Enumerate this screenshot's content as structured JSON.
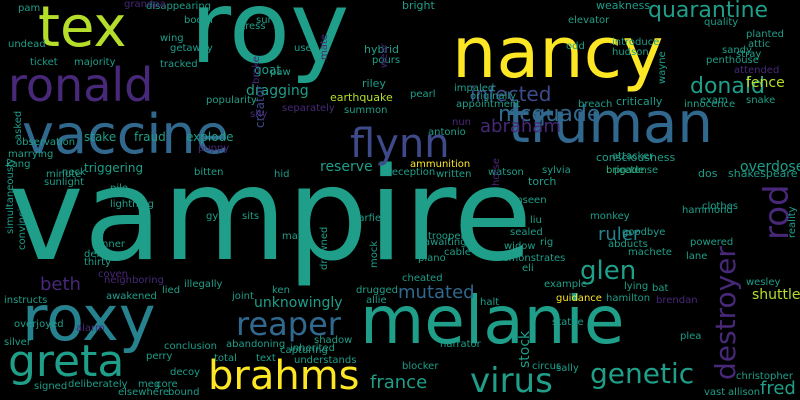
{
  "palette": {
    "yellow": "#fde725",
    "lime": "#b5de2b",
    "green": "#6ece58",
    "green2": "#35b779",
    "teal": "#1f9e89",
    "teal2": "#26828e",
    "blue": "#31688e",
    "blue2": "#3e4a89",
    "indigo": "#482878",
    "purple": "#440154"
  },
  "words": [
    {
      "text": "vampire",
      "color": "teal"
    },
    {
      "text": "roy",
      "color": "teal"
    },
    {
      "text": "nancy",
      "color": "yellow"
    },
    {
      "text": "tex",
      "color": "lime"
    },
    {
      "text": "ronald",
      "color": "indigo"
    },
    {
      "text": "vaccine",
      "color": "blue"
    },
    {
      "text": "truman",
      "color": "blue"
    },
    {
      "text": "melanie",
      "color": "teal"
    },
    {
      "text": "roxy",
      "color": "teal2"
    },
    {
      "text": "greta",
      "color": "teal"
    },
    {
      "text": "brahms",
      "color": "yellow"
    },
    {
      "text": "flynn",
      "color": "blue2"
    },
    {
      "text": "reaper",
      "color": "blue"
    },
    {
      "text": "virus",
      "color": "teal"
    },
    {
      "text": "genetic",
      "color": "teal"
    },
    {
      "text": "quarantine",
      "color": "teal"
    },
    {
      "text": "infected",
      "color": "blue2"
    },
    {
      "text": "mcquade",
      "color": "blue"
    },
    {
      "text": "donald",
      "color": "teal"
    },
    {
      "text": "abraham",
      "color": "indigo"
    },
    {
      "text": "rod",
      "color": "indigo"
    },
    {
      "text": "glen",
      "color": "teal"
    },
    {
      "text": "ruler",
      "color": "teal2"
    },
    {
      "text": "beth",
      "color": "indigo"
    },
    {
      "text": "mutated",
      "color": "blue"
    },
    {
      "text": "france",
      "color": "teal"
    },
    {
      "text": "shuttle",
      "color": "lime"
    },
    {
      "text": "stock",
      "color": "teal"
    },
    {
      "text": "destroyer",
      "color": "indigo"
    },
    {
      "text": "fred",
      "color": "teal"
    },
    {
      "text": "fence",
      "color": "lime"
    },
    {
      "text": "stake",
      "color": "teal"
    },
    {
      "text": "fraud",
      "color": "teal"
    },
    {
      "text": "dragging",
      "color": "teal"
    },
    {
      "text": "goat",
      "color": "teal"
    },
    {
      "text": "creator",
      "color": "blue2"
    },
    {
      "text": "explode",
      "color": "teal"
    },
    {
      "text": "overdose",
      "color": "teal"
    },
    {
      "text": "reserve",
      "color": "teal"
    },
    {
      "text": "unknowingly",
      "color": "teal"
    },
    {
      "text": "triggering",
      "color": "teal"
    },
    {
      "text": "torch",
      "color": "teal"
    },
    {
      "text": "brigade",
      "color": "green2"
    },
    {
      "text": "shakespeare",
      "color": "teal"
    },
    {
      "text": "dos",
      "color": "teal"
    },
    {
      "text": "pretense",
      "color": "teal"
    },
    {
      "text": "consciousness",
      "color": "teal"
    },
    {
      "text": "attacker",
      "color": "teal"
    },
    {
      "text": "ammunition",
      "color": "yellow"
    },
    {
      "text": "earthquake",
      "color": "lime"
    },
    {
      "text": "hybrid",
      "color": "teal"
    },
    {
      "text": "riley",
      "color": "teal"
    },
    {
      "text": "pearl",
      "color": "teal"
    },
    {
      "text": "impaled",
      "color": "teal"
    },
    {
      "text": "originally",
      "color": "teal"
    },
    {
      "text": "appointment",
      "color": "teal"
    },
    {
      "text": "breach",
      "color": "teal"
    },
    {
      "text": "critically",
      "color": "teal"
    },
    {
      "text": "innocence",
      "color": "teal"
    },
    {
      "text": "exam",
      "color": "teal"
    },
    {
      "text": "snake",
      "color": "teal"
    },
    {
      "text": "elevator",
      "color": "teal"
    },
    {
      "text": "odd",
      "color": "teal"
    },
    {
      "text": "introduce",
      "color": "teal"
    },
    {
      "text": "hudson",
      "color": "teal"
    },
    {
      "text": "weakness",
      "color": "teal"
    },
    {
      "text": "quality",
      "color": "teal"
    },
    {
      "text": "planted",
      "color": "teal"
    },
    {
      "text": "stray",
      "color": "teal"
    },
    {
      "text": "attic",
      "color": "teal"
    },
    {
      "text": "sandy",
      "color": "teal"
    },
    {
      "text": "penthouse",
      "color": "teal"
    },
    {
      "text": "attended",
      "color": "indigo"
    },
    {
      "text": "wayne",
      "color": "teal"
    },
    {
      "text": "bright",
      "color": "teal"
    },
    {
      "text": "pam",
      "color": "teal"
    },
    {
      "text": "disappearing",
      "color": "teal"
    },
    {
      "text": "grandpa",
      "color": "indigo"
    },
    {
      "text": "booth",
      "color": "teal"
    },
    {
      "text": "wing",
      "color": "teal"
    },
    {
      "text": "getaway",
      "color": "teal"
    },
    {
      "text": "stress",
      "color": "teal"
    },
    {
      "text": "sure",
      "color": "teal"
    },
    {
      "text": "user",
      "color": "teal"
    },
    {
      "text": "paw",
      "color": "teal"
    },
    {
      "text": "mate",
      "color": "indigo"
    },
    {
      "text": "pours",
      "color": "teal"
    },
    {
      "text": "wear",
      "color": "indigo"
    },
    {
      "text": "undead",
      "color": "teal"
    },
    {
      "text": "majority",
      "color": "teal"
    },
    {
      "text": "ticket",
      "color": "teal"
    },
    {
      "text": "tracked",
      "color": "teal"
    },
    {
      "text": "popularity",
      "color": "teal"
    },
    {
      "text": "broke",
      "color": "indigo"
    },
    {
      "text": "separately",
      "color": "indigo"
    },
    {
      "text": "summon",
      "color": "teal"
    },
    {
      "text": "shy",
      "color": "indigo"
    },
    {
      "text": "observation",
      "color": "teal"
    },
    {
      "text": "asked",
      "color": "teal"
    },
    {
      "text": "marrying",
      "color": "teal"
    },
    {
      "text": "kang",
      "color": "teal"
    },
    {
      "text": "puppy",
      "color": "indigo"
    },
    {
      "text": "bitten",
      "color": "teal"
    },
    {
      "text": "hid",
      "color": "teal"
    },
    {
      "text": "reception",
      "color": "teal"
    },
    {
      "text": "written",
      "color": "teal"
    },
    {
      "text": "watson",
      "color": "teal"
    },
    {
      "text": "sylvia",
      "color": "teal"
    },
    {
      "text": "antonio",
      "color": "teal"
    },
    {
      "text": "nun",
      "color": "indigo"
    },
    {
      "text": "neck",
      "color": "teal"
    },
    {
      "text": "minute",
      "color": "teal"
    },
    {
      "text": "sunlight",
      "color": "teal"
    },
    {
      "text": "pile",
      "color": "teal"
    },
    {
      "text": "lightning",
      "color": "teal"
    },
    {
      "text": "simultaneously",
      "color": "teal"
    },
    {
      "text": "convincing",
      "color": "teal"
    },
    {
      "text": "gym",
      "color": "teal"
    },
    {
      "text": "sits",
      "color": "teal"
    },
    {
      "text": "garfield",
      "color": "teal"
    },
    {
      "text": "trooper",
      "color": "teal"
    },
    {
      "text": "unseen",
      "color": "teal"
    },
    {
      "text": "horse",
      "color": "indigo"
    },
    {
      "text": "liu",
      "color": "teal"
    },
    {
      "text": "monkey",
      "color": "teal"
    },
    {
      "text": "goodbye",
      "color": "teal"
    },
    {
      "text": "clothes",
      "color": "teal"
    },
    {
      "text": "reality",
      "color": "teal"
    },
    {
      "text": "hammond",
      "color": "teal"
    },
    {
      "text": "powered",
      "color": "teal"
    },
    {
      "text": "lane",
      "color": "teal"
    },
    {
      "text": "machete",
      "color": "teal"
    },
    {
      "text": "abducts",
      "color": "teal"
    },
    {
      "text": "sealed",
      "color": "teal"
    },
    {
      "text": "widow",
      "color": "teal"
    },
    {
      "text": "rig",
      "color": "teal"
    },
    {
      "text": "mac",
      "color": "teal"
    },
    {
      "text": "awaiting",
      "color": "teal"
    },
    {
      "text": "cable",
      "color": "teal"
    },
    {
      "text": "demonstrates",
      "color": "teal"
    },
    {
      "text": "eli",
      "color": "teal"
    },
    {
      "text": "tanner",
      "color": "teal"
    },
    {
      "text": "delta",
      "color": "teal"
    },
    {
      "text": "thirty",
      "color": "teal"
    },
    {
      "text": "coven",
      "color": "indigo"
    },
    {
      "text": "neighboring",
      "color": "indigo"
    },
    {
      "text": "illegally",
      "color": "teal"
    },
    {
      "text": "drowned",
      "color": "teal"
    },
    {
      "text": "mock",
      "color": "teal"
    },
    {
      "text": "piano",
      "color": "teal"
    },
    {
      "text": "cheated",
      "color": "teal"
    },
    {
      "text": "example",
      "color": "teal"
    },
    {
      "text": "lying",
      "color": "teal"
    },
    {
      "text": "hamilton",
      "color": "teal"
    },
    {
      "text": "bat",
      "color": "teal"
    },
    {
      "text": "wesley",
      "color": "teal"
    },
    {
      "text": "brendan",
      "color": "indigo"
    },
    {
      "text": "instructs",
      "color": "teal"
    },
    {
      "text": "awakened",
      "color": "teal"
    },
    {
      "text": "lied",
      "color": "teal"
    },
    {
      "text": "joint",
      "color": "teal"
    },
    {
      "text": "ken",
      "color": "teal"
    },
    {
      "text": "drugged",
      "color": "teal"
    },
    {
      "text": "allie",
      "color": "teal"
    },
    {
      "text": "halt",
      "color": "teal"
    },
    {
      "text": "guidance",
      "color": "yellow"
    },
    {
      "text": "overjoyed",
      "color": "teal"
    },
    {
      "text": "alarm",
      "color": "indigo"
    },
    {
      "text": "silver",
      "color": "teal"
    },
    {
      "text": "conclusion",
      "color": "teal"
    },
    {
      "text": "abandoning",
      "color": "teal"
    },
    {
      "text": "capturing",
      "color": "teal"
    },
    {
      "text": "shadow",
      "color": "teal"
    },
    {
      "text": "inherited",
      "color": "teal"
    },
    {
      "text": "understands",
      "color": "teal"
    },
    {
      "text": "narrator",
      "color": "teal"
    },
    {
      "text": "statue",
      "color": "teal"
    },
    {
      "text": "plea",
      "color": "teal"
    },
    {
      "text": "bound",
      "color": "teal"
    },
    {
      "text": "perry",
      "color": "teal"
    },
    {
      "text": "total",
      "color": "teal"
    },
    {
      "text": "text",
      "color": "teal"
    },
    {
      "text": "blocker",
      "color": "teal"
    },
    {
      "text": "circus",
      "color": "teal"
    },
    {
      "text": "sally",
      "color": "teal"
    },
    {
      "text": "christopher",
      "color": "teal"
    },
    {
      "text": "decoy",
      "color": "teal"
    },
    {
      "text": "signed",
      "color": "teal"
    },
    {
      "text": "deliberately",
      "color": "teal"
    },
    {
      "text": "meg",
      "color": "teal"
    },
    {
      "text": "core",
      "color": "teal"
    },
    {
      "text": "elsewhere",
      "color": "teal"
    },
    {
      "text": "vast",
      "color": "teal"
    },
    {
      "text": "allison",
      "color": "teal"
    }
  ]
}
